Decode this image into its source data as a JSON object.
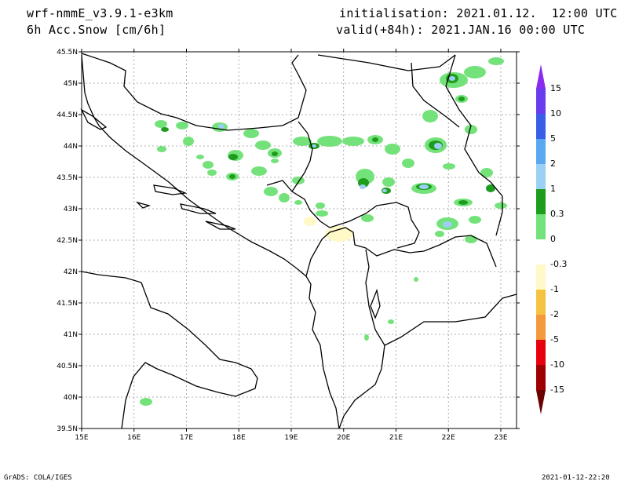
{
  "header": {
    "model": "wrf-nmmE_v3.9.1-e3km",
    "field": "6h Acc.Snow [cm/6h]",
    "init": "initialisation: 2021.01.12.  12:00 UTC",
    "valid": "valid(+84h): 2021.JAN.16 00:00 UTC"
  },
  "footer": {
    "left": "GrADS: COLA/IGES",
    "right": "2021-01-12-22:20"
  },
  "map": {
    "lat_ticks": [
      "45.5N",
      "45N",
      "44.5N",
      "44N",
      "43.5N",
      "43N",
      "42.5N",
      "42N",
      "41.5N",
      "41N",
      "40.5N",
      "40N",
      "39.5N"
    ],
    "lon_ticks": [
      "15E",
      "16E",
      "17E",
      "18E",
      "19E",
      "20E",
      "21E",
      "22E",
      "23E"
    ],
    "lon_range": [
      15,
      23.3
    ],
    "lat_range": [
      39.5,
      45.5
    ],
    "grid": true
  },
  "colorbar": {
    "labels": [
      "15",
      "10",
      "5",
      "2",
      "1",
      "0.3",
      "0",
      "-0.3",
      "-1",
      "-2",
      "-5",
      "-10",
      "-15"
    ],
    "colors": [
      "#6a3cf0",
      "#3a5de8",
      "#5aa8f0",
      "#9ccff5",
      "#1e9c1e",
      "#74e27a",
      "#ffffff",
      "#ffffff",
      "#fff9c8",
      "#f5c242",
      "#f59a3c",
      "#f04b1e",
      "#e8000e",
      "#a00000",
      "#6a0000"
    ]
  },
  "snow_colors": {
    "light": "#74e27a",
    "medium": "#1e9c1e",
    "heavy": "#9ccff5",
    "neg": "#fff9c8"
  }
}
